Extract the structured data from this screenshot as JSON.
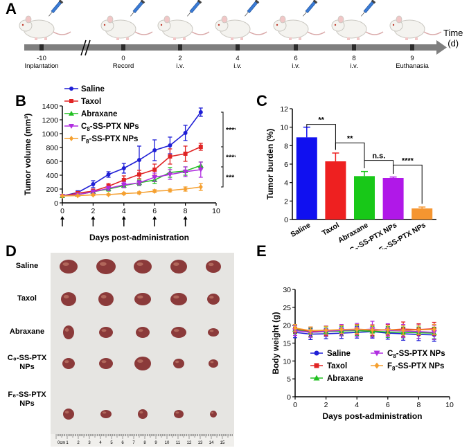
{
  "panels": {
    "a": {
      "letter": "A",
      "time_label": "Time",
      "time_unit": "(d)",
      "events": [
        {
          "day": "-10",
          "label": "Inplantation",
          "injection": true
        },
        {
          "day": "0",
          "label": "Record",
          "injection": true
        },
        {
          "day": "2",
          "label": "i.v.",
          "injection": true
        },
        {
          "day": "4",
          "label": "i.v.",
          "injection": true
        },
        {
          "day": "6",
          "label": "i.v.",
          "injection": true
        },
        {
          "day": "8",
          "label": "i.v.",
          "injection": true
        },
        {
          "day": "9",
          "label": "Euthanasia",
          "injection": false
        }
      ]
    },
    "b": {
      "letter": "B"
    },
    "c": {
      "letter": "C"
    },
    "d": {
      "letter": "D",
      "rows": [
        "Saline",
        "Taxol",
        "Abraxane",
        "C8-SS-PTX NPs",
        "F8-SS-PTX NPs"
      ],
      "row_lines": [
        [
          "Saline"
        ],
        [
          "Taxol"
        ],
        [
          "Abraxane"
        ],
        [
          "C₈-SS-PTX",
          "NPs"
        ],
        [
          "F₈-SS-PTX",
          "NPs"
        ]
      ],
      "ruler_label": "0cm",
      "ruler_numbers": [
        "1",
        "2",
        "3",
        "4",
        "5",
        "6",
        "7",
        "8",
        "9",
        "10",
        "11",
        "12",
        "13",
        "14",
        "15"
      ]
    },
    "e": {
      "letter": "E"
    }
  },
  "colors": {
    "saline": "#1f1fd6",
    "taxol": "#e02424",
    "abraxane": "#22c022",
    "c8": "#b02ee0",
    "f8": "#f5a030",
    "axis": "#000000",
    "timeline": "#7f7f7f",
    "tissue": "#8b3a3a",
    "photo_bg": "#e6e5e2"
  },
  "chart_data": [
    {
      "id": "B",
      "type": "line",
      "xlabel": "Days post-administration",
      "ylabel": "Tumor volume (mm³)",
      "xlim": [
        0,
        10
      ],
      "ylim": [
        0,
        1400
      ],
      "xticks": [
        "0",
        "2",
        "4",
        "6",
        "8",
        "10"
      ],
      "yticks": [
        "0",
        "200",
        "400",
        "600",
        "800",
        "1000",
        "1200",
        "1400"
      ],
      "x": [
        0,
        1,
        2,
        3,
        4,
        5,
        6,
        7,
        8,
        9
      ],
      "dose_arrows": [
        0,
        2,
        4,
        6,
        8
      ],
      "series": [
        {
          "name": "Saline",
          "label_parts": [
            "Saline"
          ],
          "color": "#1f1fd6",
          "marker": "circle",
          "values": [
            100,
            150,
            270,
            410,
            500,
            620,
            760,
            830,
            1010,
            1310
          ],
          "errors": [
            20,
            25,
            50,
            40,
            70,
            200,
            150,
            120,
            110,
            60
          ]
        },
        {
          "name": "Taxol",
          "label_parts": [
            "Taxol"
          ],
          "color": "#e02424",
          "marker": "square",
          "values": [
            100,
            140,
            170,
            240,
            330,
            410,
            480,
            670,
            710,
            810
          ],
          "errors": [
            15,
            20,
            30,
            40,
            60,
            60,
            80,
            110,
            110,
            50
          ]
        },
        {
          "name": "Abraxane",
          "label_parts": [
            "Abraxane"
          ],
          "color": "#22c022",
          "marker": "triangle",
          "values": [
            100,
            120,
            160,
            200,
            250,
            290,
            330,
            440,
            460,
            540
          ],
          "errors": [
            15,
            15,
            20,
            30,
            30,
            40,
            50,
            70,
            60,
            50
          ]
        },
        {
          "name": "C8-SS-PTX NPs",
          "label_parts": [
            "C",
            "8",
            "-SS-PTX NPs"
          ],
          "color": "#b02ee0",
          "marker": "triangle-down",
          "values": [
            100,
            120,
            160,
            210,
            260,
            290,
            370,
            410,
            450,
            480
          ],
          "errors": [
            15,
            20,
            25,
            30,
            40,
            30,
            60,
            70,
            70,
            110
          ]
        },
        {
          "name": "F8-SS-PTX NPs",
          "label_parts": [
            "F",
            "8",
            "-SS-PTX NPs"
          ],
          "color": "#f5a030",
          "marker": "diamond",
          "values": [
            100,
            105,
            115,
            120,
            135,
            145,
            170,
            180,
            200,
            230
          ],
          "errors": [
            10,
            10,
            10,
            10,
            15,
            15,
            20,
            20,
            30,
            50
          ]
        }
      ],
      "annotations": [
        "****",
        "****",
        "***"
      ]
    },
    {
      "id": "C",
      "type": "bar",
      "ylabel": "Tumor burden (%)",
      "ylim": [
        0,
        12
      ],
      "yticks": [
        "0",
        "2",
        "4",
        "6",
        "8",
        "10",
        "12"
      ],
      "categories": [
        "Saline",
        "Taxol",
        "Abraxane",
        "C8-SS-PTX NPs",
        "F8-SS-PTX NPs"
      ],
      "category_parts": [
        [
          "Saline"
        ],
        [
          "Taxol"
        ],
        [
          "Abraxane"
        ],
        [
          "C",
          "8",
          "-SS-PTX NPs"
        ],
        [
          "F",
          "8",
          "-SS-PTX NPs"
        ]
      ],
      "values": [
        8.9,
        6.3,
        4.7,
        4.5,
        1.2
      ],
      "errors": [
        1.1,
        0.9,
        0.5,
        0.1,
        0.15
      ],
      "colors": [
        "#1010f0",
        "#ee2020",
        "#18c818",
        "#b018e8",
        "#f59530"
      ],
      "significance": [
        {
          "from": 0,
          "to": 1,
          "label": "**"
        },
        {
          "from": 1,
          "to": 2,
          "label": "**"
        },
        {
          "from": 2,
          "to": 3,
          "label": "n.s."
        },
        {
          "from": 3,
          "to": 4,
          "label": "****"
        }
      ]
    },
    {
      "id": "E",
      "type": "line",
      "xlabel": "Days post-administration",
      "ylabel": "Body weight (g)",
      "xlim": [
        0,
        10
      ],
      "ylim": [
        0,
        30
      ],
      "xticks": [
        "0",
        "2",
        "4",
        "6",
        "8",
        "10"
      ],
      "yticks": [
        "0",
        "5",
        "10",
        "15",
        "20",
        "25",
        "30"
      ],
      "x": [
        0,
        1,
        2,
        3,
        4,
        5,
        6,
        7,
        8,
        9
      ],
      "series": [
        {
          "name": "Saline",
          "label_parts": [
            "Saline"
          ],
          "color": "#1f1fd6",
          "marker": "circle",
          "values": [
            18,
            17.5,
            17.6,
            17.8,
            18,
            18.2,
            17.8,
            17.6,
            17.4,
            17.3
          ],
          "errors": [
            1.5,
            1.5,
            1.4,
            1.5,
            1.6,
            1.8,
            1.7,
            1.8,
            1.7,
            1.8
          ]
        },
        {
          "name": "Taxol",
          "label_parts": [
            "Taxol"
          ],
          "color": "#e02424",
          "marker": "square",
          "values": [
            19,
            18.2,
            18.4,
            18.6,
            18.8,
            18.6,
            18.7,
            18.9,
            18.8,
            19
          ],
          "errors": [
            1.2,
            1.3,
            1.3,
            1.4,
            1.4,
            1.5,
            1.5,
            2.0,
            1.6,
            1.8
          ]
        },
        {
          "name": "Abraxane",
          "label_parts": [
            "Abraxane"
          ],
          "color": "#22c022",
          "marker": "triangle",
          "values": [
            18.8,
            18,
            18.2,
            18.4,
            18.5,
            18.3,
            18.1,
            18,
            17.9,
            17.8
          ],
          "errors": [
            1.2,
            1.2,
            1.3,
            1.3,
            1.4,
            1.4,
            1.5,
            1.5,
            1.6,
            1.6
          ]
        },
        {
          "name": "C8-SS-PTX NPs",
          "label_parts": [
            "C",
            "8",
            "-SS-PTX NPs"
          ],
          "color": "#b02ee0",
          "marker": "triangle-down",
          "values": [
            18.5,
            18,
            18.3,
            18.6,
            18.7,
            18.9,
            18.6,
            18.4,
            18.2,
            18
          ],
          "errors": [
            1.4,
            1.4,
            1.5,
            1.6,
            1.8,
            2.2,
            1.8,
            1.8,
            1.9,
            2.0
          ]
        },
        {
          "name": "F8-SS-PTX NPs",
          "label_parts": [
            "F",
            "8",
            "-SS-PTX NPs"
          ],
          "color": "#f5a030",
          "marker": "diamond",
          "values": [
            19.2,
            18.5,
            18.6,
            18.8,
            18.9,
            18.7,
            18.8,
            18.6,
            18.7,
            18.8
          ],
          "errors": [
            1.0,
            1.0,
            1.1,
            1.1,
            1.2,
            1.2,
            1.2,
            1.3,
            1.3,
            1.4
          ]
        }
      ]
    }
  ]
}
